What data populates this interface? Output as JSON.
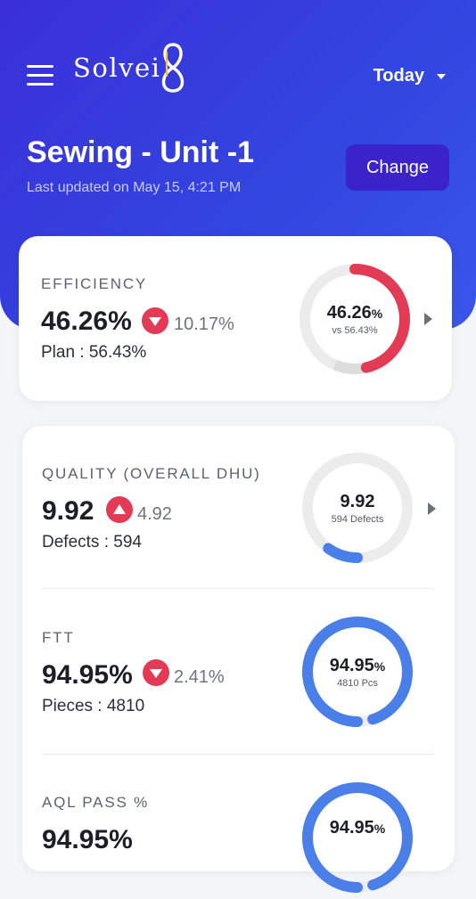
{
  "app": {
    "logo_text": "Solvei",
    "period": "Today"
  },
  "header": {
    "title": "Sewing - Unit -1",
    "updated": "Last updated on May 15, 4:21 PM",
    "change_label": "Change"
  },
  "colors": {
    "red": "#e33a55",
    "blue": "#4a7ee8",
    "track": "#ececec"
  },
  "metrics": [
    {
      "label": "EFFICIENCY",
      "value": "46.26%",
      "trend": "down",
      "delta": "10.17%",
      "sub": "Plan : 56.43%",
      "donut_main": "46.26",
      "donut_unit": "%",
      "donut_sub": "vs 56.43%",
      "fill_fraction": 0.4626,
      "target_fraction": 0.5643,
      "color": "#e33a55"
    },
    {
      "label": "QUALITY (OVERALL DHU)",
      "value": "9.92",
      "trend": "up",
      "delta": "4.92",
      "sub": "Defects : 594",
      "donut_main": "9.92",
      "donut_unit": "",
      "donut_sub": "594 Defects",
      "fill_fraction": 0.0992,
      "color": "#4a7ee8"
    },
    {
      "label": "FTT",
      "value": "94.95%",
      "trend": "down",
      "delta": "2.41%",
      "sub": "Pieces : 4810",
      "donut_main": "94.95",
      "donut_unit": "%",
      "donut_sub": "4810 Pcs",
      "fill_fraction": 0.9495,
      "color": "#4a7ee8"
    },
    {
      "label": "AQL PASS %",
      "value": "94.95%",
      "donut_main": "94.95",
      "donut_unit": "%",
      "fill_fraction": 0.9495,
      "color": "#4a7ee8"
    }
  ]
}
